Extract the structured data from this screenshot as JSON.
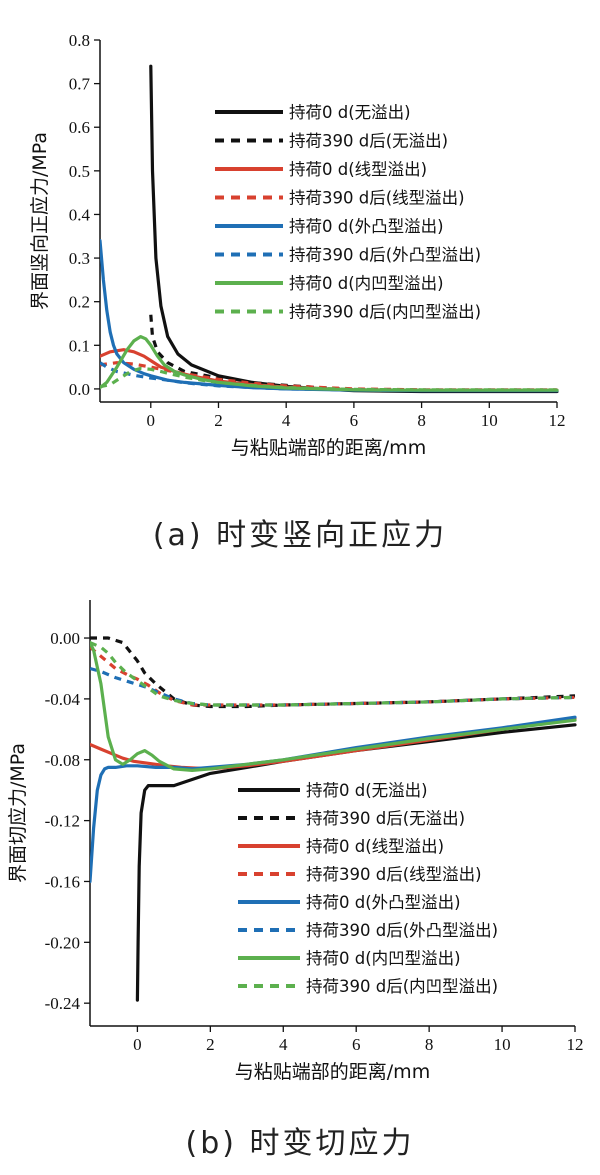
{
  "chart_data": [
    {
      "type": "line",
      "caption": "(a) 时变竖向正应力",
      "xlabel": "与粘贴端部的距离/mm",
      "ylabel": "界面竖向正应力/MPa",
      "xlim": [
        -1.5,
        12
      ],
      "ylim": [
        -0.03,
        0.8
      ],
      "xticks": [
        0,
        2,
        4,
        6,
        8,
        10,
        12
      ],
      "xtick_labels": [
        "0",
        "2",
        "4",
        "6",
        "8",
        "10",
        "12"
      ],
      "yticks": [
        0,
        0.1,
        0.2,
        0.3,
        0.4,
        0.5,
        0.6,
        0.7,
        0.8
      ],
      "ytick_labels": [
        "0.0",
        "0.1",
        "0.2",
        "0.3",
        "0.4",
        "0.5",
        "0.6",
        "0.7",
        "0.8"
      ],
      "legend_position": "top-right",
      "grid": false,
      "series": [
        {
          "name": "持荷0 d(无溢出)",
          "color": "#111111",
          "dash": "solid",
          "x": [
            0,
            0.05,
            0.15,
            0.3,
            0.5,
            0.8,
            1.2,
            2,
            3,
            4,
            5,
            6,
            8,
            10,
            12
          ],
          "y": [
            0.74,
            0.5,
            0.3,
            0.19,
            0.12,
            0.08,
            0.055,
            0.03,
            0.015,
            0.006,
            0.0,
            -0.004,
            -0.006,
            -0.006,
            -0.006
          ]
        },
        {
          "name": "持荷390 d后(无溢出)",
          "color": "#111111",
          "dash": "dashed",
          "x": [
            0,
            0.05,
            0.2,
            0.5,
            1,
            2,
            3,
            4,
            5,
            6,
            8,
            10,
            12
          ],
          "y": [
            0.17,
            0.12,
            0.085,
            0.06,
            0.04,
            0.025,
            0.014,
            0.008,
            0.003,
            -0.002,
            -0.004,
            -0.004,
            -0.004
          ]
        },
        {
          "name": "持荷0 d(线型溢出)",
          "color": "#d8412f",
          "dash": "solid",
          "x": [
            -1.5,
            -1.2,
            -0.8,
            -0.5,
            -0.2,
            0,
            0.3,
            0.7,
            1.2,
            2,
            3,
            4,
            6,
            8,
            10,
            12
          ],
          "y": [
            0.075,
            0.085,
            0.09,
            0.085,
            0.075,
            0.065,
            0.05,
            0.04,
            0.03,
            0.018,
            0.01,
            0.004,
            -0.002,
            -0.003,
            -0.003,
            -0.003
          ]
        },
        {
          "name": "持荷390 d后(线型溢出)",
          "color": "#d8412f",
          "dash": "dashed",
          "x": [
            -1.5,
            -1,
            -0.5,
            0,
            0.5,
            1,
            2,
            3,
            4,
            6,
            8,
            10,
            12
          ],
          "y": [
            0.055,
            0.06,
            0.057,
            0.05,
            0.042,
            0.035,
            0.022,
            0.013,
            0.007,
            0.0,
            -0.002,
            -0.002,
            -0.002
          ]
        },
        {
          "name": "持荷0 d(外凸型溢出)",
          "color": "#1f6fb5",
          "dash": "solid",
          "x": [
            -1.5,
            -1.4,
            -1.3,
            -1.2,
            -1.1,
            -1.0,
            -0.8,
            -0.5,
            -0.2,
            0,
            0.5,
            1,
            2,
            3,
            4,
            6,
            8,
            10,
            12
          ],
          "y": [
            0.34,
            0.25,
            0.18,
            0.13,
            0.1,
            0.08,
            0.06,
            0.045,
            0.035,
            0.03,
            0.02,
            0.015,
            0.008,
            0.003,
            0.0,
            -0.003,
            -0.004,
            -0.004,
            -0.004
          ]
        },
        {
          "name": "持荷390 d后(外凸型溢出)",
          "color": "#1f6fb5",
          "dash": "dashed",
          "x": [
            -1.5,
            -1.3,
            -1.0,
            -0.7,
            -0.4,
            0,
            0.5,
            1,
            2,
            3,
            4,
            6,
            8,
            10,
            12
          ],
          "y": [
            0.06,
            0.05,
            0.04,
            0.035,
            0.03,
            0.025,
            0.02,
            0.014,
            0.007,
            0.003,
            0.0,
            -0.002,
            -0.003,
            -0.003,
            -0.003
          ]
        },
        {
          "name": "持荷0 d(内凹型溢出)",
          "color": "#5cb04e",
          "dash": "solid",
          "x": [
            -1.5,
            -1.3,
            -1.0,
            -0.7,
            -0.5,
            -0.3,
            -0.15,
            0,
            0.2,
            0.4,
            0.7,
            1,
            1.5,
            2,
            3,
            4,
            6,
            8,
            10,
            12
          ],
          "y": [
            0.003,
            0.015,
            0.05,
            0.09,
            0.11,
            0.12,
            0.115,
            0.1,
            0.075,
            0.055,
            0.04,
            0.032,
            0.022,
            0.015,
            0.007,
            0.002,
            -0.002,
            -0.003,
            -0.003,
            -0.003
          ]
        },
        {
          "name": "持荷390 d后(内凹型溢出)",
          "color": "#5cb04e",
          "dash": "dashed",
          "x": [
            -1.5,
            -1.2,
            -0.9,
            -0.6,
            -0.3,
            0,
            0.3,
            0.6,
            1,
            1.5,
            2,
            3,
            4,
            6,
            8,
            10,
            12
          ],
          "y": [
            0.005,
            0.01,
            0.025,
            0.04,
            0.047,
            0.045,
            0.04,
            0.034,
            0.027,
            0.02,
            0.015,
            0.008,
            0.003,
            -0.001,
            -0.002,
            -0.002,
            -0.002
          ]
        }
      ]
    },
    {
      "type": "line",
      "caption": "(b) 时变切应力",
      "xlabel": "与粘贴端部的距离/mm",
      "ylabel": "界面切应力/MPa",
      "xlim": [
        -1.3,
        12
      ],
      "ylim": [
        -0.255,
        0.025
      ],
      "xticks": [
        0,
        2,
        4,
        6,
        8,
        10,
        12
      ],
      "xtick_labels": [
        "0",
        "2",
        "4",
        "6",
        "8",
        "10",
        "12"
      ],
      "yticks": [
        0,
        -0.04,
        -0.08,
        -0.12,
        -0.16,
        -0.2,
        -0.24
      ],
      "ytick_labels": [
        "0.00",
        "-0.04",
        "-0.08",
        "-0.12",
        "-0.16",
        "-0.20",
        "-0.24"
      ],
      "legend_position": "bottom-right",
      "grid": false,
      "series": [
        {
          "name": "持荷0 d(无溢出)",
          "color": "#111111",
          "dash": "solid",
          "x": [
            0,
            0.02,
            0.05,
            0.1,
            0.2,
            0.3,
            0.5,
            1,
            1.5,
            2,
            3,
            4,
            6,
            8,
            10,
            12
          ],
          "y": [
            -0.238,
            -0.2,
            -0.15,
            -0.115,
            -0.1,
            -0.097,
            -0.097,
            -0.097,
            -0.093,
            -0.089,
            -0.085,
            -0.081,
            -0.074,
            -0.068,
            -0.062,
            -0.057
          ]
        },
        {
          "name": "持荷390 d后(无溢出)",
          "color": "#111111",
          "dash": "dashed",
          "x": [
            -1.3,
            -0.8,
            -0.4,
            0,
            0.2,
            0.5,
            1,
            1.5,
            2,
            3,
            4,
            6,
            8,
            10,
            12
          ],
          "y": [
            0.0,
            0.0,
            -0.003,
            -0.015,
            -0.023,
            -0.03,
            -0.04,
            -0.044,
            -0.045,
            -0.045,
            -0.044,
            -0.043,
            -0.042,
            -0.04,
            -0.038
          ]
        },
        {
          "name": "持荷0 d(线型溢出)",
          "color": "#d8412f",
          "dash": "solid",
          "x": [
            -1.3,
            -1.0,
            -0.7,
            -0.4,
            -0.1,
            0.2,
            0.5,
            0.8,
            1.2,
            2,
            3,
            4,
            6,
            8,
            10,
            12
          ],
          "y": [
            -0.07,
            -0.073,
            -0.076,
            -0.079,
            -0.081,
            -0.082,
            -0.083,
            -0.084,
            -0.085,
            -0.086,
            -0.084,
            -0.081,
            -0.074,
            -0.067,
            -0.06,
            -0.053
          ]
        },
        {
          "name": "持荷390 d后(线型溢出)",
          "color": "#d8412f",
          "dash": "dashed",
          "x": [
            -1.3,
            -1.0,
            -0.6,
            -0.2,
            0,
            0.3,
            0.6,
            1,
            1.5,
            2,
            3,
            4,
            6,
            8,
            10,
            12
          ],
          "y": [
            -0.006,
            -0.012,
            -0.02,
            -0.025,
            -0.027,
            -0.031,
            -0.036,
            -0.041,
            -0.044,
            -0.044,
            -0.044,
            -0.044,
            -0.043,
            -0.042,
            -0.04,
            -0.039
          ]
        },
        {
          "name": "持荷0 d(外凸型溢出)",
          "color": "#1f6fb5",
          "dash": "solid",
          "x": [
            -1.3,
            -1.2,
            -1.1,
            -1.0,
            -0.9,
            -0.8,
            -0.6,
            -0.3,
            0,
            0.5,
            1,
            1.5,
            2,
            3,
            4,
            6,
            8,
            10,
            12
          ],
          "y": [
            -0.16,
            -0.125,
            -0.1,
            -0.09,
            -0.086,
            -0.085,
            -0.085,
            -0.084,
            -0.084,
            -0.085,
            -0.085,
            -0.086,
            -0.085,
            -0.083,
            -0.08,
            -0.072,
            -0.065,
            -0.059,
            -0.052
          ]
        },
        {
          "name": "持荷390 d后(外凸型溢出)",
          "color": "#1f6fb5",
          "dash": "dashed",
          "x": [
            -1.3,
            -1.0,
            -0.6,
            -0.2,
            0.2,
            0.6,
            1,
            1.5,
            2,
            3,
            4,
            6,
            8,
            10,
            12
          ],
          "y": [
            -0.02,
            -0.022,
            -0.026,
            -0.029,
            -0.032,
            -0.036,
            -0.04,
            -0.043,
            -0.044,
            -0.044,
            -0.044,
            -0.043,
            -0.042,
            -0.04,
            -0.039
          ]
        },
        {
          "name": "持荷0 d(内凹型溢出)",
          "color": "#5cb04e",
          "dash": "solid",
          "x": [
            -1.3,
            -1.2,
            -1.0,
            -0.8,
            -0.6,
            -0.4,
            -0.2,
            0,
            0.2,
            0.4,
            0.6,
            1,
            1.5,
            2,
            3,
            4,
            6,
            8,
            10,
            12
          ],
          "y": [
            -0.003,
            -0.008,
            -0.03,
            -0.065,
            -0.08,
            -0.083,
            -0.08,
            -0.076,
            -0.074,
            -0.077,
            -0.081,
            -0.086,
            -0.087,
            -0.086,
            -0.083,
            -0.08,
            -0.073,
            -0.066,
            -0.06,
            -0.054
          ]
        },
        {
          "name": "持荷390 d后(内凹型溢出)",
          "color": "#5cb04e",
          "dash": "dashed",
          "x": [
            -1.3,
            -1.0,
            -0.8,
            -0.6,
            -0.3,
            0,
            0.3,
            0.6,
            1,
            1.5,
            2,
            3,
            4,
            6,
            8,
            10,
            12
          ],
          "y": [
            -0.003,
            -0.006,
            -0.01,
            -0.016,
            -0.023,
            -0.028,
            -0.033,
            -0.038,
            -0.041,
            -0.043,
            -0.044,
            -0.044,
            -0.044,
            -0.043,
            -0.042,
            -0.04,
            -0.039
          ]
        }
      ]
    }
  ]
}
